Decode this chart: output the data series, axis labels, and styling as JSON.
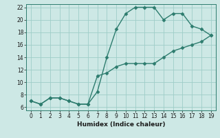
{
  "xlabel": "Humidex (Indice chaleur)",
  "line1_x": [
    0,
    1,
    2,
    3,
    4,
    5,
    6,
    7,
    8,
    9,
    10,
    11,
    12,
    13,
    14,
    15,
    16,
    17,
    18,
    19
  ],
  "line1_y": [
    7,
    6.5,
    7.5,
    7.5,
    7,
    6.5,
    6.5,
    8.5,
    14,
    18.5,
    21,
    22,
    22,
    22,
    20,
    21,
    21,
    19,
    18.5,
    17.5
  ],
  "line2_x": [
    0,
    1,
    2,
    3,
    4,
    5,
    6,
    7,
    8,
    9,
    10,
    11,
    12,
    13,
    14,
    15,
    16,
    17,
    18,
    19
  ],
  "line2_y": [
    7,
    6.5,
    7.5,
    7.5,
    7,
    6.5,
    6.5,
    11,
    11.5,
    12.5,
    13,
    13,
    13,
    13,
    14,
    15,
    15.5,
    16,
    16.5,
    17.5
  ],
  "line_color": "#2d7c6e",
  "bg_color": "#cde8e5",
  "grid_color": "#9ecdc8",
  "ylim": [
    5.5,
    22.5
  ],
  "xlim": [
    -0.5,
    19.5
  ],
  "yticks": [
    6,
    8,
    10,
    12,
    14,
    16,
    18,
    20,
    22
  ],
  "xticks": [
    0,
    1,
    2,
    3,
    4,
    5,
    6,
    7,
    8,
    9,
    10,
    11,
    12,
    13,
    14,
    15,
    16,
    17,
    18,
    19
  ],
  "marker": "D",
  "markersize": 2.5,
  "linewidth": 1.0
}
